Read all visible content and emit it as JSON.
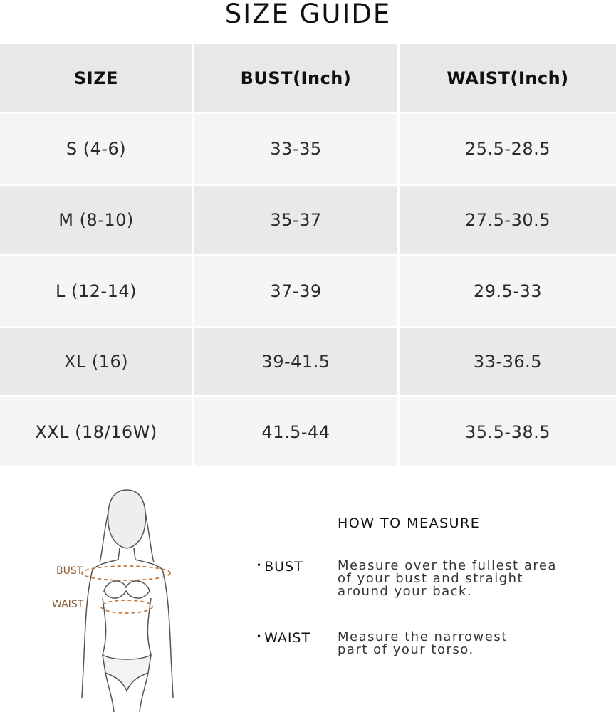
{
  "title": "SIZE GUIDE",
  "table": {
    "header": [
      "SIZE",
      "BUST(Inch)",
      "WAIST(Inch)"
    ],
    "rows": [
      [
        "S (4-6)",
        "33-35",
        "25.5-28.5"
      ],
      [
        "M (8-10)",
        "35-37",
        "27.5-30.5"
      ],
      [
        "L (12-14)",
        "37-39",
        "29.5-33"
      ],
      [
        "XL (16)",
        "39-41.5",
        "33-36.5"
      ],
      [
        "XXL (18/16W)",
        "41.5-44",
        "35.5-38.5"
      ]
    ]
  },
  "figure": {
    "labels": [
      "BUST",
      "WAIST"
    ]
  },
  "how_to_measure": {
    "title": "HOW TO MEASURE",
    "items": [
      {
        "name": "BUST",
        "lines": [
          "Measure over the fullest area",
          "of your bust and straight",
          "around your back."
        ]
      },
      {
        "name": "WAIST",
        "lines": [
          "Measure the narrowest",
          "part of your torso."
        ]
      }
    ]
  }
}
